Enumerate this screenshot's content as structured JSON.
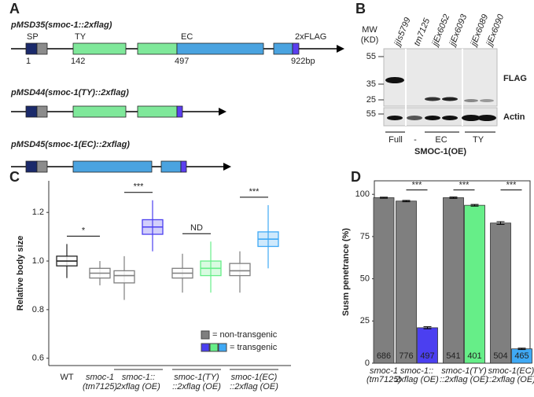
{
  "panel_labels": [
    "A",
    "B",
    "C",
    "D"
  ],
  "diagram": {
    "constructs": [
      {
        "title": "pMSD35(smoc-1::2xflag)",
        "domain_labels": [
          "SP",
          "TY",
          "EC",
          "2xFLAG"
        ],
        "position_labels": [
          "1",
          "142",
          "497",
          "922bp"
        ]
      },
      {
        "title": "pMSD44(smoc-1(TY)::2xflag)"
      },
      {
        "title": "pMSD45(smoc-1(EC)::2xflag)"
      }
    ]
  },
  "blot": {
    "mw_label": [
      "MW",
      "(KD)"
    ],
    "markers": [
      55,
      35,
      25,
      55
    ],
    "lanes": [
      "jjIs5799",
      "tm7125",
      "jjEx6052",
      "jjEx6093",
      "jjEx6089",
      "jjEx6090"
    ],
    "blot_labels": [
      "FLAG",
      "Actin"
    ],
    "groups": [
      "Full",
      "-",
      "EC",
      "TY"
    ],
    "xlabel": "SMOC-1(OE)"
  },
  "chart_data": [
    {
      "type": "box",
      "ylabel": "Relative body size",
      "ylim": [
        0.57,
        1.33
      ],
      "yticks": [
        0.6,
        0.8,
        {
          "value": 1,
          "label": "1.0"
        },
        1.2
      ],
      "categories": [
        [
          "WT"
        ],
        [
          "smoc-1",
          "(tm7125)"
        ],
        [
          "smoc-1::",
          "2xflag (OE)"
        ],
        [
          "smoc-1(TY)",
          "::2xflag (OE)"
        ],
        [
          "smoc-1(EC)",
          "::2xflag (OE)"
        ]
      ],
      "series": [
        {
          "name": "= non-transgenic",
          "color": "#7f7f7f",
          "colors": [
            "#222222",
            "#7f7f7f",
            "#7f7f7f",
            "#7f7f7f",
            "#7f7f7f"
          ],
          "boxes": [
            {
              "min": 0.93,
              "q1": 0.98,
              "median": 1.0,
              "q3": 1.02,
              "max": 1.07
            },
            {
              "min": 0.9,
              "q1": 0.93,
              "median": 0.95,
              "q3": 0.97,
              "max": 1.0
            },
            {
              "min": 0.84,
              "q1": 0.91,
              "median": 0.94,
              "q3": 0.96,
              "max": 1.02
            },
            {
              "min": 0.87,
              "q1": 0.93,
              "median": 0.95,
              "q3": 0.97,
              "max": 1.03
            },
            {
              "min": 0.87,
              "q1": 0.94,
              "median": 0.96,
              "q3": 0.99,
              "max": 1.04
            }
          ]
        },
        {
          "name": "= transgenic",
          "colors": [
            null,
            null,
            "#4b3ff0",
            "#66ee88",
            "#3fa9f5"
          ],
          "boxes": [
            null,
            null,
            {
              "min": 1.04,
              "q1": 1.11,
              "median": 1.14,
              "q3": 1.17,
              "max": 1.25
            },
            {
              "min": 0.87,
              "q1": 0.94,
              "median": 0.97,
              "q3": 1.0,
              "max": 1.08
            },
            {
              "min": 0.97,
              "q1": 1.06,
              "median": 1.09,
              "q3": 1.12,
              "max": 1.23
            }
          ]
        }
      ],
      "annotations": [
        {
          "text": "*",
          "categories": [
            0,
            1
          ]
        },
        {
          "text": "***",
          "categories": [
            2
          ]
        },
        {
          "text": "ND",
          "categories": [
            3
          ]
        },
        {
          "text": "***",
          "categories": [
            4
          ]
        }
      ]
    },
    {
      "type": "bar",
      "ylabel": "Susm penetrance (%)",
      "ylim": [
        0,
        108
      ],
      "yticks": [
        0,
        25,
        50,
        75,
        100
      ],
      "categories": [
        [
          "smoc-1",
          "(tm7125)"
        ],
        [
          "smoc-1::",
          "2xflag (OE)"
        ],
        [
          "smoc-1(TY)",
          "::2xflag (OE)"
        ],
        [
          "smoc-1(EC)",
          "::2xflag (OE)"
        ]
      ],
      "series": [
        {
          "colors": [
            "#7f7f7f",
            "#7f7f7f",
            "#7f7f7f",
            "#7f7f7f"
          ],
          "values": [
            98,
            96,
            98,
            83
          ],
          "errors": [
            0.3,
            0.4,
            0.4,
            0.8
          ],
          "counts": [
            686,
            776,
            541,
            504
          ]
        },
        {
          "colors": [
            null,
            "#4b3ff0",
            "#66ee88",
            "#3fa9f5"
          ],
          "values": [
            null,
            21,
            93.5,
            8.5
          ],
          "errors": [
            null,
            0.6,
            0.5,
            0.4
          ],
          "counts": [
            null,
            497,
            401,
            465
          ]
        }
      ],
      "annotations": [
        {
          "text": "***",
          "categories": [
            1
          ]
        },
        {
          "text": "***",
          "categories": [
            2
          ]
        },
        {
          "text": "***",
          "categories": [
            3
          ]
        }
      ]
    }
  ]
}
